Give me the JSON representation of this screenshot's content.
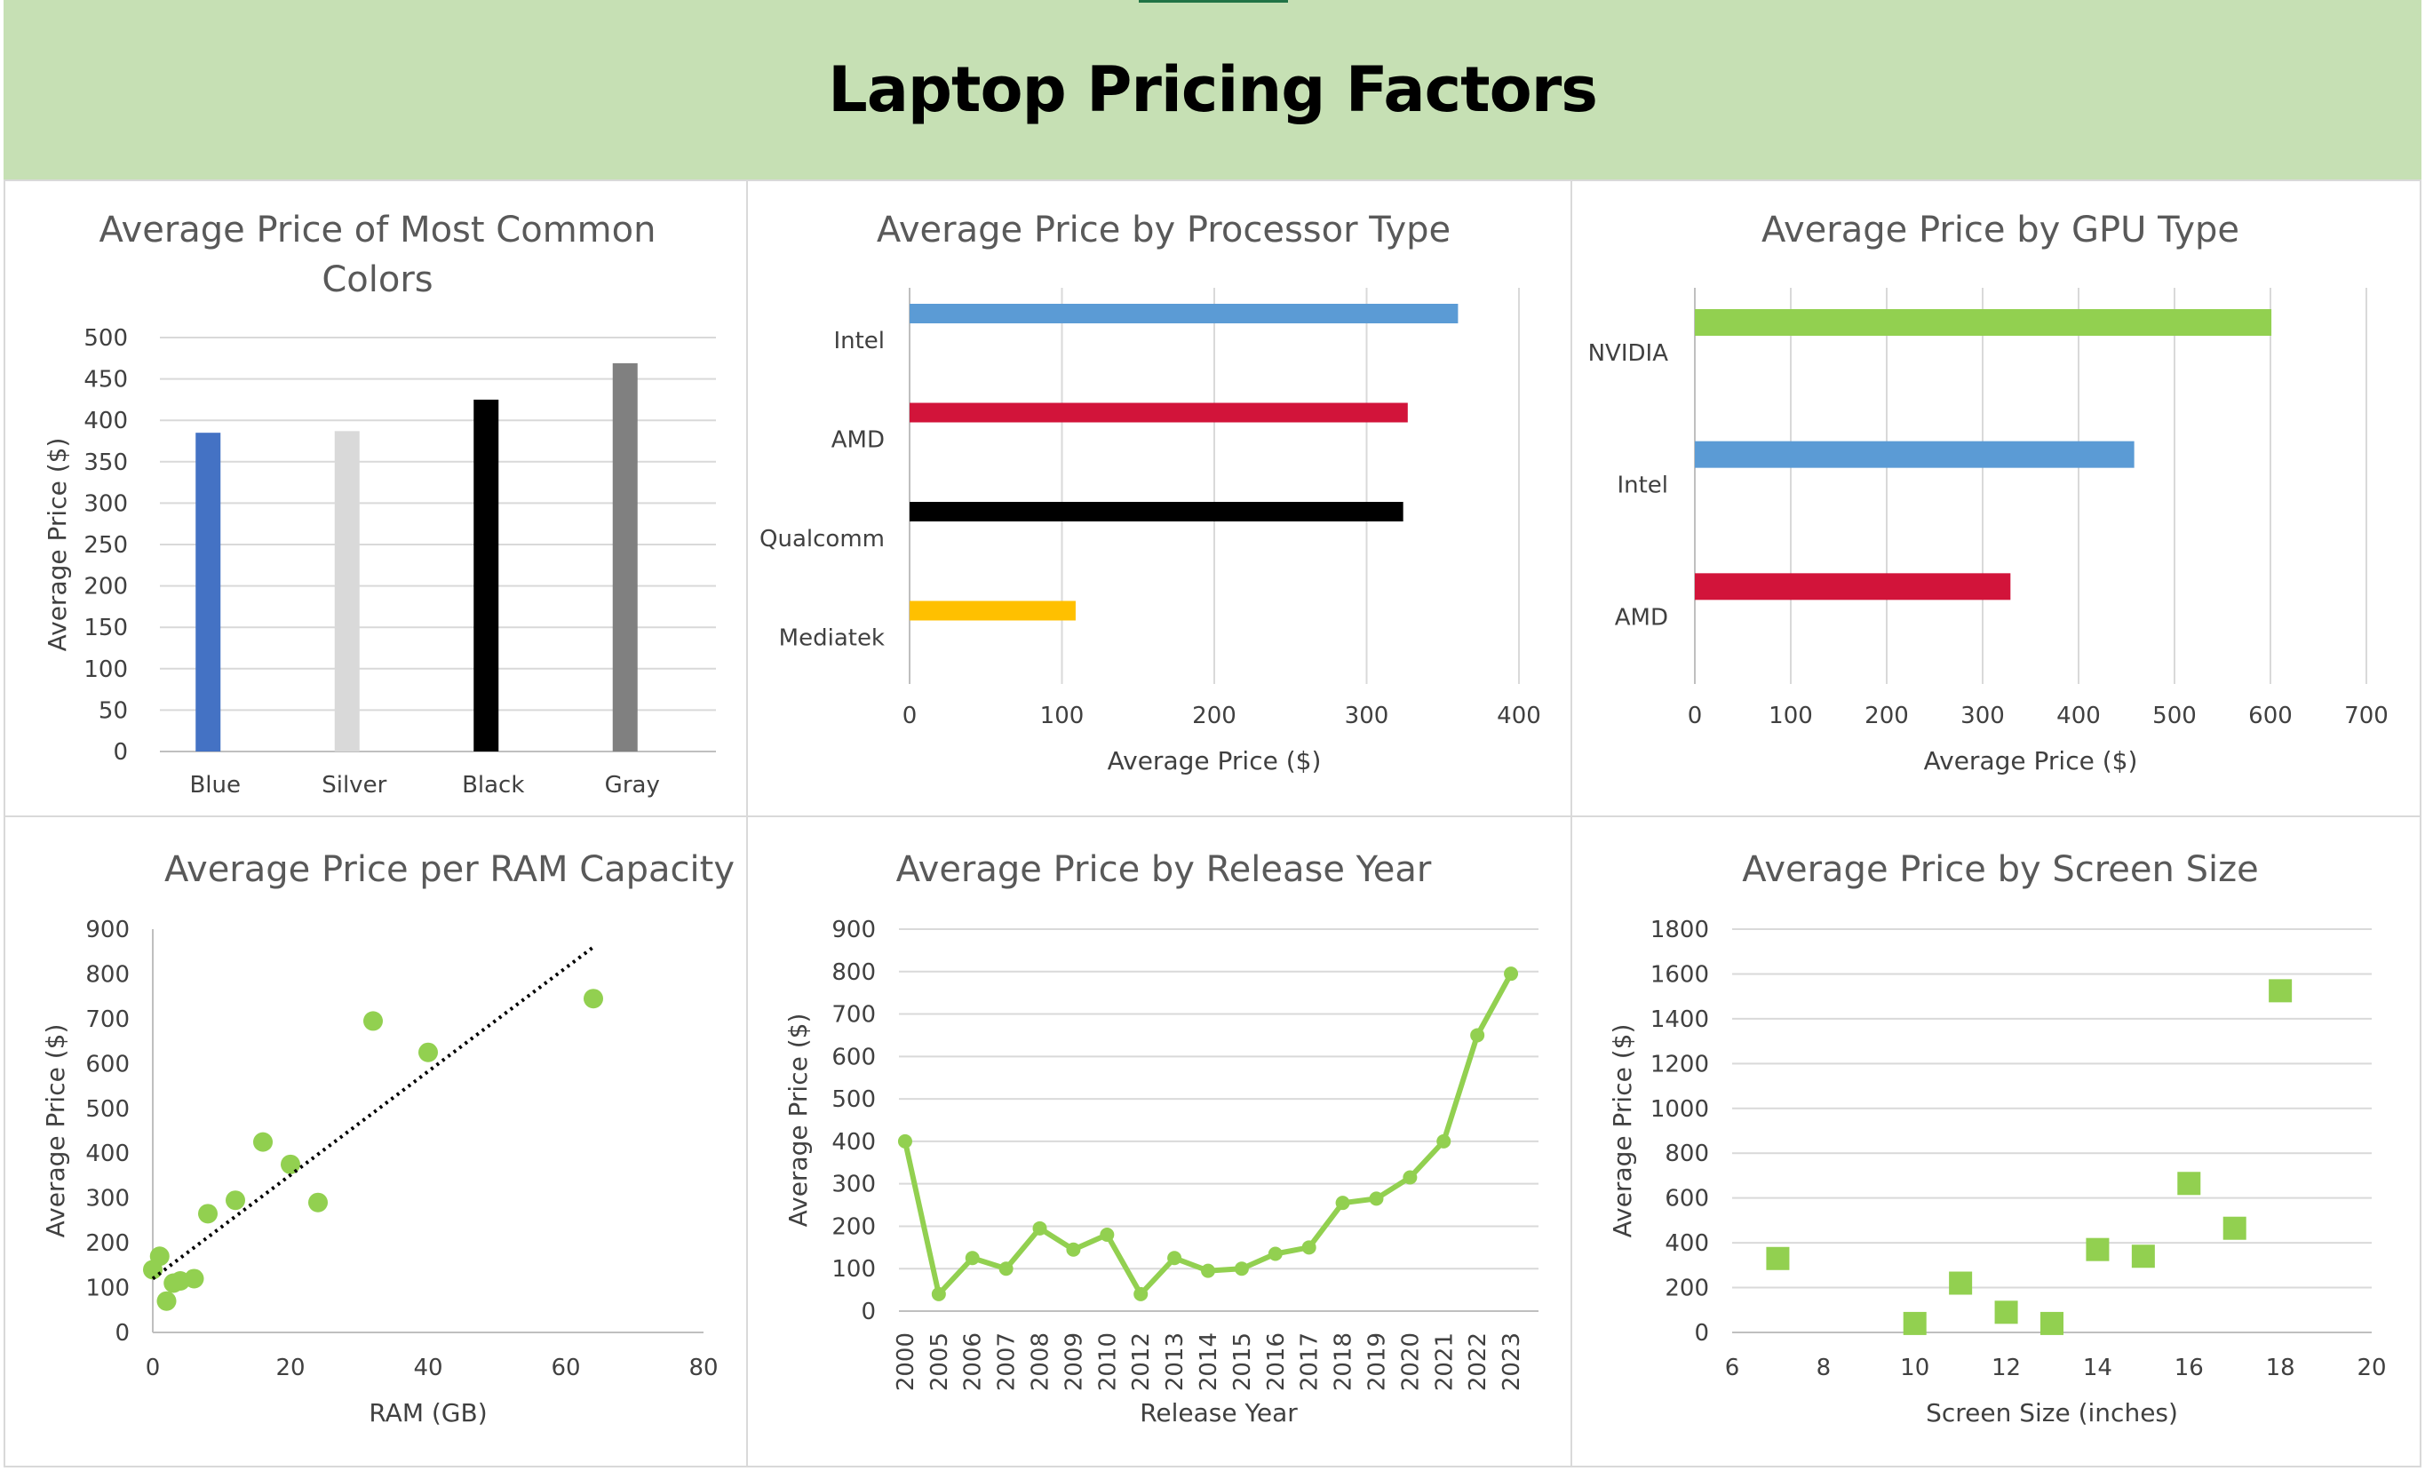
{
  "page": {
    "title": "Laptop Pricing Factors"
  },
  "chart_data": [
    {
      "id": "colors",
      "type": "bar",
      "title": "Average Price of Most Common Colors",
      "categories": [
        "Blue",
        "Silver",
        "Black",
        "Gray"
      ],
      "values": [
        385,
        387,
        425,
        469
      ],
      "bar_colors": [
        "#4472c4",
        "#d9d9d9",
        "#000000",
        "#808080"
      ],
      "ylabel": "Average Price ($)",
      "xlabel": "",
      "ylim": [
        0,
        500
      ],
      "yticks": [
        0,
        50,
        100,
        150,
        200,
        250,
        300,
        350,
        400,
        450,
        500
      ],
      "grid": true
    },
    {
      "id": "processor",
      "type": "bar",
      "orientation": "horizontal",
      "title": "Average Price by Processor Type",
      "categories": [
        "Intel",
        "AMD",
        "Qualcomm",
        "Mediatek"
      ],
      "values": [
        360,
        327,
        324,
        109
      ],
      "bar_colors": [
        "#5b9bd5",
        "#d2143a",
        "#000000",
        "#ffc000"
      ],
      "xlabel": "Average Price ($)",
      "xlim": [
        0,
        400
      ],
      "xticks": [
        0,
        100,
        200,
        300,
        400
      ],
      "grid": true
    },
    {
      "id": "gpu",
      "type": "bar",
      "orientation": "horizontal",
      "title": "Average Price by GPU Type",
      "categories": [
        "NVIDIA",
        "Intel",
        "AMD"
      ],
      "values": [
        601,
        458,
        329
      ],
      "bar_colors": [
        "#92d050",
        "#5b9bd5",
        "#d2143a"
      ],
      "xlabel": "Average Price ($)",
      "xlim": [
        0,
        700
      ],
      "xticks": [
        0,
        100,
        200,
        300,
        400,
        500,
        600,
        700
      ],
      "grid": true
    },
    {
      "id": "ram",
      "type": "scatter",
      "title": "Average Price per RAM Capacity",
      "x": [
        0,
        1,
        2,
        3,
        4,
        6,
        8,
        12,
        16,
        20,
        24,
        32,
        40,
        64
      ],
      "y": [
        140,
        170,
        70,
        110,
        115,
        120,
        265,
        295,
        425,
        375,
        290,
        695,
        625,
        745
      ],
      "trendline": {
        "style": "dotted",
        "from": [
          0,
          120
        ],
        "to": [
          64,
          860
        ]
      },
      "marker_color": "#92d050",
      "xlabel": "RAM (GB)",
      "ylabel": "Average Price ($)",
      "xlim": [
        0,
        80
      ],
      "ylim": [
        0,
        900
      ],
      "xticks": [
        0,
        20,
        40,
        60,
        80
      ],
      "yticks": [
        0,
        100,
        200,
        300,
        400,
        500,
        600,
        700,
        800,
        900
      ],
      "grid": false
    },
    {
      "id": "year",
      "type": "line",
      "title": "Average Price by Release Year",
      "categories": [
        "2000",
        "2005",
        "2006",
        "2007",
        "2008",
        "2009",
        "2010",
        "2012",
        "2013",
        "2014",
        "2015",
        "2016",
        "2017",
        "2018",
        "2019",
        "2020",
        "2021",
        "2022",
        "2023"
      ],
      "values": [
        400,
        40,
        125,
        100,
        195,
        145,
        180,
        40,
        125,
        95,
        100,
        135,
        150,
        255,
        265,
        315,
        400,
        650,
        795
      ],
      "line_color": "#92d050",
      "xlabel": "Release Year",
      "ylabel": "Average Price ($)",
      "ylim": [
        0,
        900
      ],
      "yticks": [
        0,
        100,
        200,
        300,
        400,
        500,
        600,
        700,
        800,
        900
      ],
      "grid": true
    },
    {
      "id": "screen",
      "type": "scatter",
      "title": "Average Price by Screen Size",
      "x": [
        7,
        10,
        11,
        12,
        13,
        14,
        15,
        16,
        17,
        18
      ],
      "y": [
        330,
        40,
        220,
        90,
        40,
        370,
        340,
        665,
        465,
        1525
      ],
      "marker": "square",
      "marker_color": "#92d050",
      "xlabel": "Screen Size (inches)",
      "ylabel": "Average Price ($)",
      "xlim": [
        6,
        20
      ],
      "ylim": [
        0,
        1800
      ],
      "xticks": [
        6,
        8,
        10,
        12,
        14,
        16,
        18,
        20
      ],
      "yticks": [
        0,
        200,
        400,
        600,
        800,
        1000,
        1200,
        1400,
        1600,
        1800
      ],
      "grid": true
    }
  ]
}
